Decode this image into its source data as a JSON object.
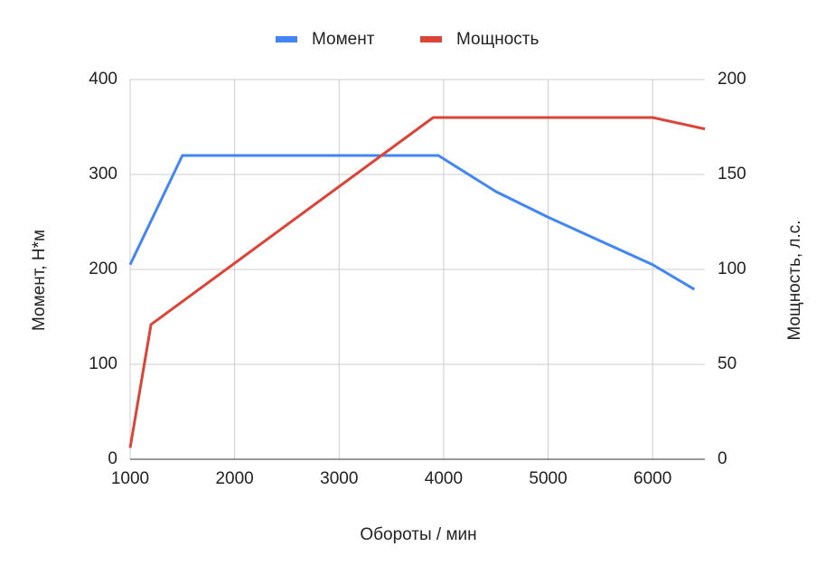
{
  "chart_data": {
    "type": "line",
    "x_label": "Обороты / мин",
    "y_label": "Момент, Н*м",
    "y2_label": "Мощность, л.с.",
    "xlim": [
      1000,
      6500
    ],
    "xticks": [
      1000,
      2000,
      3000,
      4000,
      5000,
      6000
    ],
    "ylim": [
      0,
      400
    ],
    "yticks": [
      0,
      100,
      200,
      300,
      400
    ],
    "y2lim": [
      0,
      200
    ],
    "y2ticks": [
      0,
      50,
      100,
      150,
      200
    ],
    "grid": true,
    "legend": "top",
    "series": [
      {
        "name": "Момент",
        "color": "#4285f4",
        "x": [
          1000,
          1500,
          3950,
          4500,
          5000,
          6000,
          6400
        ],
        "values": [
          205,
          320,
          320,
          282,
          255,
          205,
          179
        ]
      },
      {
        "name": "Мощность",
        "color": "#db4437",
        "axis": "y2",
        "x": [
          1000,
          1200,
          3900,
          6000,
          6500
        ],
        "values": [
          6,
          71,
          180,
          180,
          174
        ]
      }
    ]
  }
}
